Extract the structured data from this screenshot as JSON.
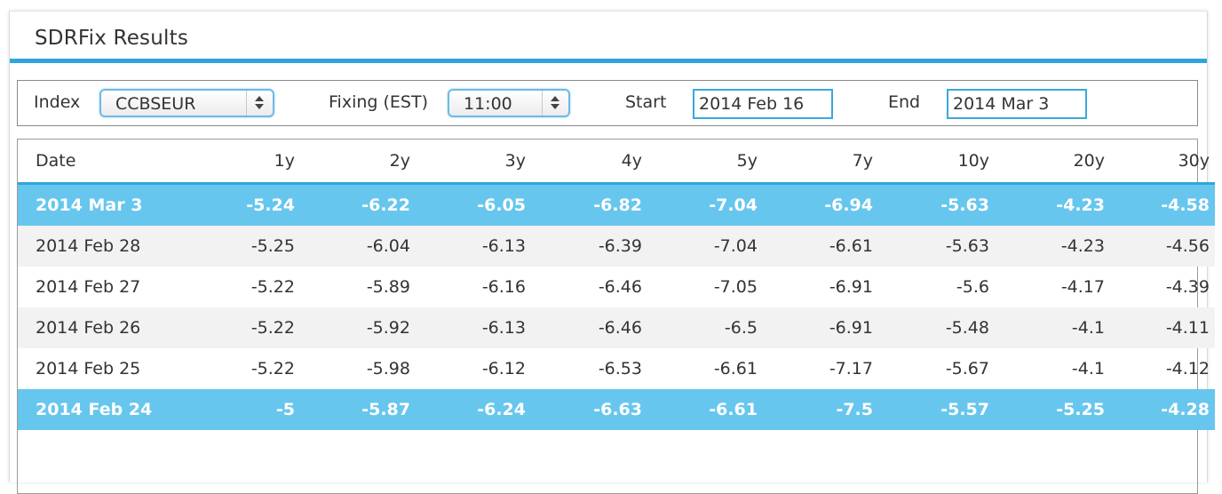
{
  "panel": {
    "title": "SDRFix Results"
  },
  "controls": {
    "index_label": "Index",
    "index_value": "CCBSEUR",
    "fixing_label": "Fixing (EST)",
    "fixing_value": "11:00",
    "start_label": "Start",
    "start_value": "2014 Feb 16",
    "end_label": "End",
    "end_value": "2014 Mar 3"
  },
  "colors": {
    "accent": "#2ea6dc",
    "highlight_row": "#67c6ee",
    "alt_row": "#f2f2f2"
  },
  "table": {
    "headers": [
      "Date",
      "1y",
      "2y",
      "3y",
      "4y",
      "5y",
      "7y",
      "10y",
      "20y",
      "30y"
    ],
    "rows": [
      {
        "highlighted": true,
        "cells": [
          "2014 Mar 3",
          "-5.24",
          "-6.22",
          "-6.05",
          "-6.82",
          "-7.04",
          "-6.94",
          "-5.63",
          "-4.23",
          "-4.58"
        ]
      },
      {
        "highlighted": false,
        "cells": [
          "2014 Feb 28",
          "-5.25",
          "-6.04",
          "-6.13",
          "-6.39",
          "-7.04",
          "-6.61",
          "-5.63",
          "-4.23",
          "-4.56"
        ]
      },
      {
        "highlighted": false,
        "cells": [
          "2014 Feb 27",
          "-5.22",
          "-5.89",
          "-6.16",
          "-6.46",
          "-7.05",
          "-6.91",
          "-5.6",
          "-4.17",
          "-4.39"
        ]
      },
      {
        "highlighted": false,
        "cells": [
          "2014 Feb 26",
          "-5.22",
          "-5.92",
          "-6.13",
          "-6.46",
          "-6.5",
          "-6.91",
          "-5.48",
          "-4.1",
          "-4.11"
        ]
      },
      {
        "highlighted": false,
        "cells": [
          "2014 Feb 25",
          "-5.22",
          "-5.98",
          "-6.12",
          "-6.53",
          "-6.61",
          "-7.17",
          "-5.67",
          "-4.1",
          "-4.12"
        ]
      },
      {
        "highlighted": true,
        "cells": [
          "2014 Feb 24",
          "-5",
          "-5.87",
          "-6.24",
          "-6.63",
          "-6.61",
          "-7.5",
          "-5.57",
          "-5.25",
          "-4.28"
        ]
      }
    ]
  }
}
